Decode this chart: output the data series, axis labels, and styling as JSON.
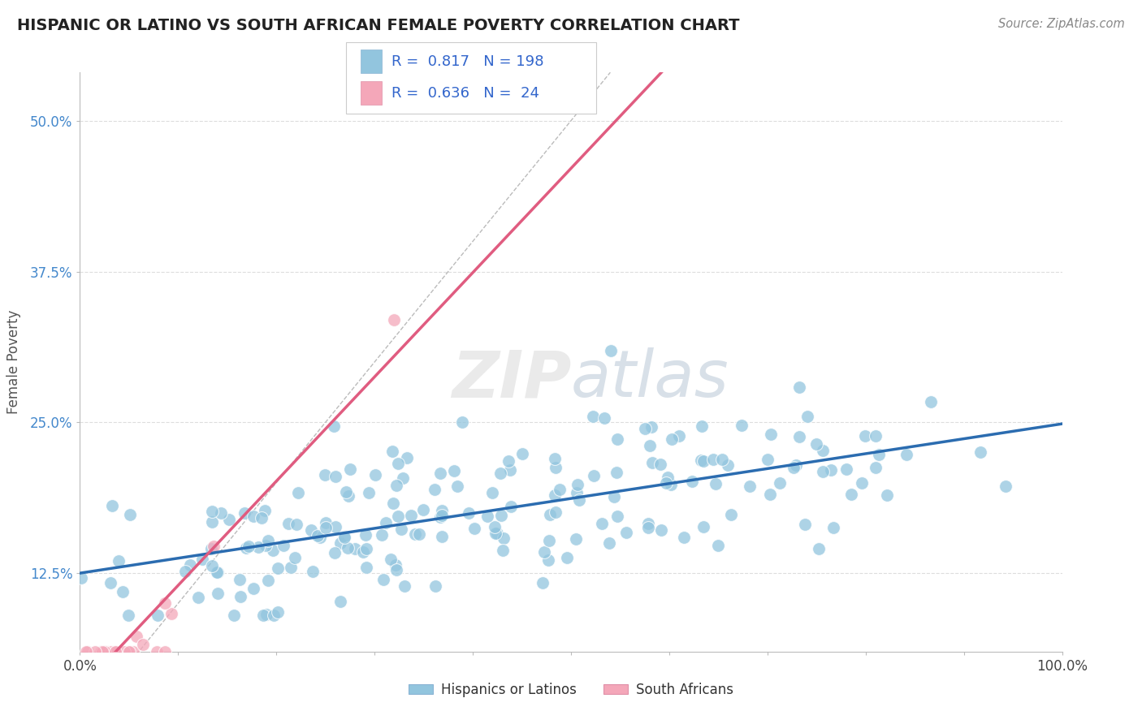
{
  "title": "HISPANIC OR LATINO VS SOUTH AFRICAN FEMALE POVERTY CORRELATION CHART",
  "source_text": "Source: ZipAtlas.com",
  "ylabel": "Female Poverty",
  "watermark": "ZIPatlas",
  "xlim": [
    0,
    1.0
  ],
  "ylim": [
    0.06,
    0.54
  ],
  "xticks": [
    0.0,
    0.1,
    0.2,
    0.3,
    0.4,
    0.5,
    0.6,
    0.7,
    0.8,
    0.9,
    1.0
  ],
  "xticklabels": [
    "0.0%",
    "",
    "",
    "",
    "",
    "",
    "",
    "",
    "",
    "",
    "100.0%"
  ],
  "yticks": [
    0.125,
    0.25,
    0.375,
    0.5
  ],
  "yticklabels": [
    "12.5%",
    "25.0%",
    "37.5%",
    "50.0%"
  ],
  "blue_color": "#92c5de",
  "pink_color": "#f4a7b9",
  "blue_line_color": "#2b6cb0",
  "pink_line_color": "#e05c80",
  "ref_line_color": "#cccccc",
  "legend_text_color": "#3366cc",
  "title_color": "#222222",
  "grid_color": "#dddddd",
  "background_color": "#ffffff",
  "blue_intercept": 0.125,
  "blue_slope": 0.13,
  "pink_intercept": -0.03,
  "pink_slope": 1.05,
  "blue_N": 198,
  "pink_N": 24
}
